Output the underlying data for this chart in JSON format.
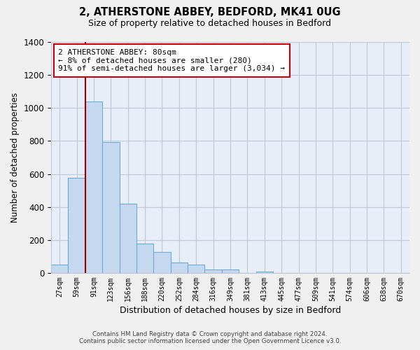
{
  "title": "2, ATHERSTONE ABBEY, BEDFORD, MK41 0UG",
  "subtitle": "Size of property relative to detached houses in Bedford",
  "xlabel": "Distribution of detached houses by size in Bedford",
  "ylabel": "Number of detached properties",
  "bar_labels": [
    "27sqm",
    "59sqm",
    "91sqm",
    "123sqm",
    "156sqm",
    "188sqm",
    "220sqm",
    "252sqm",
    "284sqm",
    "316sqm",
    "349sqm",
    "381sqm",
    "413sqm",
    "445sqm",
    "477sqm",
    "509sqm",
    "541sqm",
    "574sqm",
    "606sqm",
    "638sqm",
    "670sqm"
  ],
  "bar_values": [
    50,
    575,
    1040,
    795,
    420,
    180,
    125,
    63,
    50,
    20,
    20,
    0,
    10,
    0,
    0,
    0,
    0,
    0,
    0,
    0,
    0
  ],
  "bar_color": "#c5d8f0",
  "bar_edge_color": "#6aaad4",
  "vline_color": "#990000",
  "annotation_title": "2 ATHERSTONE ABBEY: 80sqm",
  "annotation_line1": "← 8% of detached houses are smaller (280)",
  "annotation_line2": "91% of semi-detached houses are larger (3,034) →",
  "annotation_box_color": "#ffffff",
  "annotation_box_edge_color": "#cc0000",
  "ylim": [
    0,
    1400
  ],
  "yticks": [
    0,
    200,
    400,
    600,
    800,
    1000,
    1200,
    1400
  ],
  "footer1": "Contains HM Land Registry data © Crown copyright and database right 2024.",
  "footer2": "Contains public sector information licensed under the Open Government Licence v3.0.",
  "bg_color": "#f0f0f0",
  "plot_bg_color": "#e8eef8",
  "grid_color": "#c0c8d8"
}
